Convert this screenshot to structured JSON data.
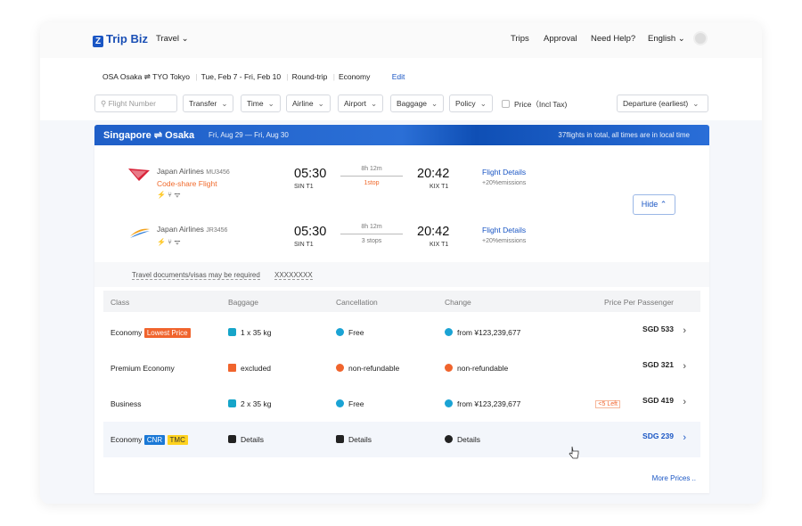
{
  "header": {
    "logo": "Trip Biz",
    "menu": "Travel",
    "nav": [
      "Trips",
      "Approval",
      "Need Help?"
    ],
    "language": "English"
  },
  "search": {
    "route_from": "OSA Osaka",
    "route_to": "TYO Tokyo",
    "dates": "Tue, Feb 7 - Fri, Feb 10",
    "trip_type": "Round-trip",
    "cabin": "Economy",
    "edit": "Edit"
  },
  "filters": {
    "flight_number_placeholder": "Flight Number",
    "options": [
      "Transfer",
      "Time",
      "Airline",
      "Airport",
      "Baggage",
      "Policy"
    ],
    "price_checkbox": "Price（Incl Tax)",
    "sort": "Departure (earliest)"
  },
  "banner": {
    "from": "Singapore",
    "to": "Osaka",
    "dates": "Fri, Aug 29 — Fri, Aug 30",
    "note": "37flights in total, all times are in local time"
  },
  "flights": [
    {
      "airline": "Japan Airlines",
      "code": "MU3456",
      "codeshare": "Code-share Flight",
      "depart_time": "05:30",
      "depart_airport": "SIN T1",
      "duration": "8h 12m",
      "stops": "1stop",
      "arrive_time": "20:42",
      "arrive_airport": "KIX T1",
      "details": "Flight Details",
      "emissions": "+20%emissions"
    },
    {
      "airline": "Japan Airlines",
      "code": "JR3456",
      "depart_time": "05:30",
      "depart_airport": "SIN T1",
      "duration": "8h 12m",
      "stops": "3 stops",
      "arrive_time": "20:42",
      "arrive_airport": "KIX T1",
      "details": "Flight Details",
      "emissions": "+20%emissions"
    }
  ],
  "hide": "Hide",
  "notice": {
    "text": "Travel documents/visas may be required",
    "value": "XXXXXXXX"
  },
  "fares": {
    "columns": [
      "Class",
      "Baggage",
      "Cancellation",
      "Change",
      "Price Per Passenger"
    ],
    "rows": [
      {
        "class": "Economy",
        "tags": [
          "Lowest Price"
        ],
        "baggage": "1 x 35 kg",
        "cancellation": "Free",
        "change": "from ¥123,239,677",
        "price": "SGD 533"
      },
      {
        "class": "Premium Economy",
        "baggage": "excluded",
        "cancellation": "non-refundable",
        "change": "non-refundable",
        "price": "SGD 321"
      },
      {
        "class": "Business",
        "baggage": "2 x 35 kg",
        "cancellation": "Free",
        "change": "from ¥123,239,677",
        "badge": "<5 Left",
        "price": "SGD 419"
      },
      {
        "class": "Economy",
        "tags": [
          "CNR",
          "TMC"
        ],
        "baggage": "Details",
        "cancellation": "Details",
        "change": "Details",
        "price": "SDG 239"
      }
    ]
  },
  "more": "More Prices .."
}
